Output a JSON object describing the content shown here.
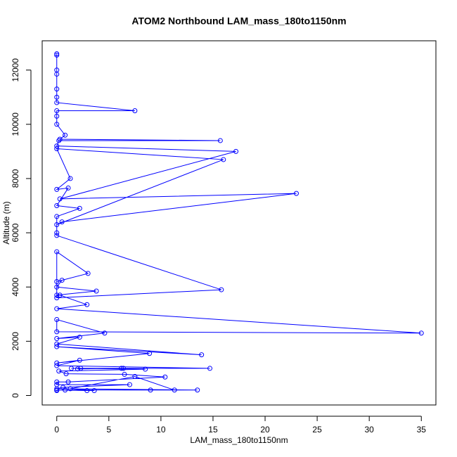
{
  "chart_data": {
    "type": "line",
    "title": "ATOM2 Northbound LAM_mass_180to1150nm",
    "x_label": "LAM_mass_180to1150nm",
    "y_label": "Altitude (m)",
    "color": "#0000ff",
    "x": [
      0,
      0,
      0,
      0,
      0,
      0,
      0,
      7.5,
      0,
      0,
      0,
      0.8,
      0.3,
      15.7,
      0.2,
      0,
      17.2,
      0.3,
      23,
      0.5,
      0,
      16,
      0,
      1.3,
      0,
      1.1,
      0,
      2.2,
      0,
      0,
      0,
      15.8,
      0,
      0,
      3,
      0,
      0.5,
      0,
      3.8,
      0,
      0.3,
      2.9,
      0,
      35,
      0,
      0,
      4.6,
      0,
      2.2,
      0,
      13.9,
      0,
      8.9,
      0,
      2.2,
      0,
      14.7,
      2.3,
      2,
      6.2,
      6.4,
      1.4,
      8.5,
      0.2,
      0.9,
      6.5,
      10.4,
      1.1,
      0,
      0,
      7,
      0.6,
      0,
      13.5,
      0.8,
      9,
      11.3,
      7.5,
      1.3,
      3.6,
      2.9,
      0,
      0
    ],
    "values": [
      12600,
      12550,
      12000,
      11850,
      11300,
      11000,
      10800,
      10500,
      10500,
      10300,
      10000,
      9600,
      9450,
      9400,
      9400,
      9200,
      9000,
      7250,
      7450,
      6400,
      6300,
      8700,
      9100,
      8000,
      7600,
      7650,
      7000,
      6900,
      6600,
      6000,
      5900,
      3900,
      3600,
      5300,
      4500,
      4200,
      4250,
      4000,
      3850,
      3700,
      3700,
      3350,
      3200,
      2300,
      2350,
      2800,
      2300,
      2100,
      2150,
      1900,
      1500,
      1800,
      1550,
      1200,
      1300,
      1100,
      1000,
      1000,
      980,
      1000,
      1000,
      1000,
      970,
      900,
      800,
      780,
      680,
      500,
      500,
      400,
      400,
      300,
      250,
      200,
      200,
      200,
      200,
      700,
      250,
      180,
      180,
      200,
      180
    ],
    "xlim": [
      -1.4,
      36.4
    ],
    "ylim": [
      -350,
      13080
    ],
    "xticks": [
      0,
      5,
      10,
      15,
      20,
      25,
      30,
      35
    ],
    "yticks": [
      0,
      2000,
      4000,
      6000,
      8000,
      10000,
      12000
    ]
  }
}
